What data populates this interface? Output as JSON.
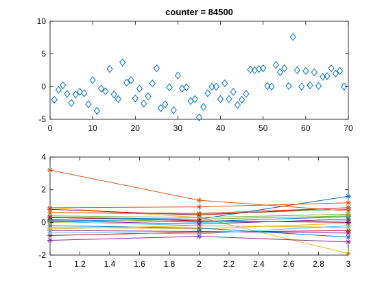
{
  "chart_data": [
    {
      "type": "scatter",
      "title": "counter = 84500",
      "xlabel": "",
      "ylabel": "",
      "xlim": [
        0,
        70
      ],
      "ylim": [
        -5,
        10
      ],
      "xticks": [
        "0",
        "10",
        "20",
        "30",
        "40",
        "50",
        "60",
        "70"
      ],
      "yticks": [
        "-5",
        "0",
        "5",
        "10"
      ],
      "grid": false,
      "marker": "diamond",
      "marker_color": "#0072BD",
      "x": [
        1,
        2,
        3,
        4,
        5,
        6,
        7,
        8,
        9,
        10,
        11,
        12,
        13,
        14,
        15,
        16,
        17,
        18,
        19,
        20,
        21,
        22,
        23,
        24,
        25,
        26,
        27,
        28,
        29,
        30,
        31,
        32,
        33,
        34,
        35,
        36,
        37,
        38,
        39,
        40,
        41,
        42,
        43,
        44,
        45,
        46,
        47,
        48,
        49,
        50,
        51,
        52,
        53,
        54,
        55,
        56,
        57,
        58,
        59,
        60,
        61,
        62,
        63,
        64,
        65,
        66,
        67,
        68,
        69
      ],
      "y": [
        -2.0,
        -0.5,
        0.2,
        -1.1,
        -2.5,
        -1.2,
        -0.8,
        -1.0,
        -2.7,
        1.0,
        -3.7,
        -0.3,
        -0.7,
        2.7,
        -1.2,
        -1.9,
        3.7,
        0.6,
        1.0,
        -1.8,
        -0.3,
        -2.6,
        -1.5,
        0.5,
        2.8,
        -3.3,
        -2.7,
        -0.1,
        -3.6,
        1.7,
        -0.3,
        -0.1,
        -2.2,
        -1.9,
        -4.7,
        -3.1,
        -1.0,
        0.0,
        0.0,
        -1.9,
        0.5,
        -1.9,
        -0.8,
        -2.8,
        -2.0,
        -1.1,
        2.6,
        2.5,
        2.7,
        2.8,
        0.1,
        0.0,
        3.3,
        2.2,
        2.8,
        0.1,
        7.6,
        2.5,
        0.0,
        2.4,
        0.2,
        2.2,
        0.1,
        1.5,
        1.6,
        2.8,
        2.0,
        2.4,
        0.0
      ]
    },
    {
      "type": "line",
      "title": "",
      "xlabel": "",
      "ylabel": "",
      "xlim": [
        1,
        3
      ],
      "ylim": [
        -2,
        4
      ],
      "xticks": [
        "1",
        "1.2",
        "1.4",
        "1.6",
        "1.8",
        "2",
        "2.2",
        "2.4",
        "2.6",
        "2.8",
        "3"
      ],
      "yticks": [
        "-2",
        "0",
        "2",
        "4"
      ],
      "grid": false,
      "marker": "star",
      "x": [
        1,
        2,
        3
      ],
      "series": [
        {
          "color": "#0072BD",
          "values": [
            0.3,
            0.2,
            1.6
          ]
        },
        {
          "color": "#D95319",
          "values": [
            3.2,
            1.35,
            0.7
          ]
        },
        {
          "color": "#EDB120",
          "values": [
            0.9,
            0.3,
            -1.9
          ]
        },
        {
          "color": "#7E2F8E",
          "values": [
            -1.1,
            -0.85,
            -1.2
          ]
        },
        {
          "color": "#77AC30",
          "values": [
            0.6,
            0.5,
            0.8
          ]
        },
        {
          "color": "#4DBEEE",
          "values": [
            0.05,
            -0.2,
            -0.3
          ]
        },
        {
          "color": "#A2142F",
          "values": [
            0.8,
            0.45,
            0.9
          ]
        },
        {
          "color": "#0072BD",
          "values": [
            0.15,
            0.05,
            0.35
          ]
        },
        {
          "color": "#D95319",
          "values": [
            0.9,
            0.95,
            1.2
          ]
        },
        {
          "color": "#EDB120",
          "values": [
            -0.3,
            -0.4,
            -0.05
          ]
        },
        {
          "color": "#7E2F8E",
          "values": [
            -0.5,
            -0.55,
            -0.65
          ]
        },
        {
          "color": "#77AC30",
          "values": [
            0.4,
            0.3,
            0.5
          ]
        },
        {
          "color": "#4DBEEE",
          "values": [
            0.2,
            0.0,
            0.1
          ]
        },
        {
          "color": "#A2142F",
          "values": [
            -0.8,
            -0.6,
            -0.5
          ]
        },
        {
          "color": "#0072BD",
          "values": [
            -0.2,
            -0.35,
            -0.9
          ]
        },
        {
          "color": "#D95319",
          "values": [
            0.6,
            0.55,
            0.9
          ]
        },
        {
          "color": "#EDB120",
          "values": [
            -0.4,
            -0.2,
            -0.3
          ]
        },
        {
          "color": "#7E2F8E",
          "values": [
            0.1,
            -0.1,
            0.2
          ]
        },
        {
          "color": "#77AC30",
          "values": [
            0.0,
            0.2,
            0.4
          ]
        },
        {
          "color": "#4DBEEE",
          "values": [
            -0.6,
            -0.7,
            -0.2
          ]
        },
        {
          "color": "#A2142F",
          "values": [
            0.3,
            0.1,
            0.0
          ]
        }
      ]
    }
  ]
}
